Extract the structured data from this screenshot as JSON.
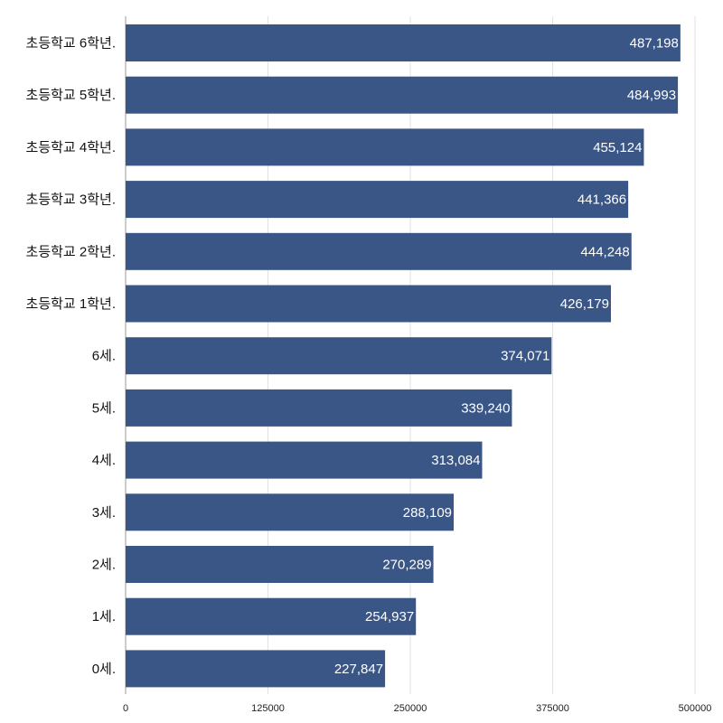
{
  "chart_data": {
    "type": "bar",
    "orientation": "horizontal",
    "title": "",
    "xlabel": "",
    "ylabel": "",
    "categories": [
      "초등학교 6학년.",
      "초등학교 5학년.",
      "초등학교 4학년.",
      "초등학교 3학년.",
      "초등학교 2학년.",
      "초등학교 1학년.",
      "6세.",
      "5세.",
      "4세.",
      "3세.",
      "2세.",
      "1세.",
      "0세."
    ],
    "values": [
      487198,
      484993,
      455124,
      441366,
      444248,
      426179,
      374071,
      339240,
      313084,
      288109,
      270289,
      254937,
      227847
    ],
    "value_labels": [
      "487,198",
      "484,993",
      "455,124",
      "441,366",
      "444,248",
      "426,179",
      "374,071",
      "339,240",
      "313,084",
      "288,109",
      "270,289",
      "254,937",
      "227,847"
    ],
    "xlim": [
      0,
      500000
    ],
    "xticks": [
      0,
      125000,
      250000,
      375000,
      500000
    ],
    "xtick_labels": [
      "0",
      "125000",
      "250000",
      "375000",
      "500000"
    ],
    "grid": true,
    "bar_color": "#3a5686",
    "grid_color": "#e2e2e2"
  }
}
